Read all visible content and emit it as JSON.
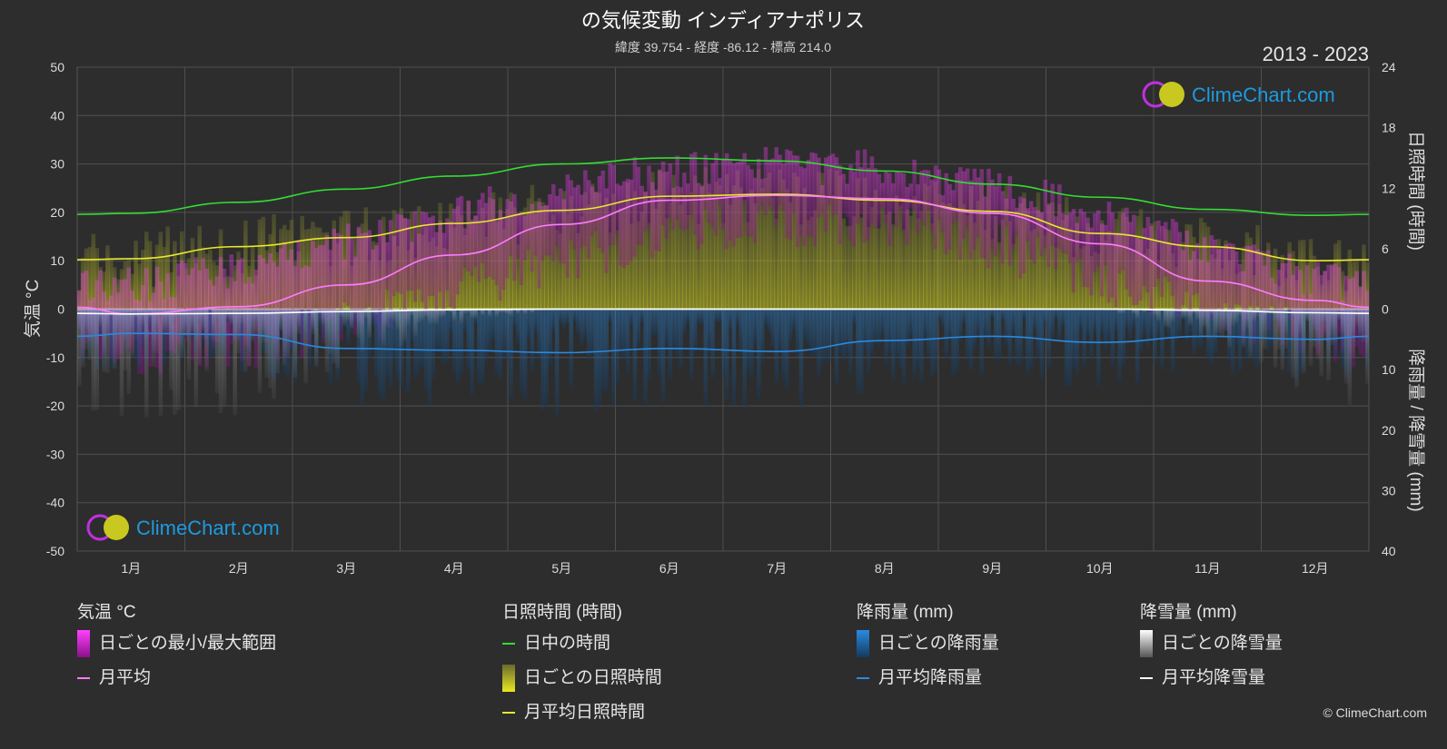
{
  "title": "の気候変動 インディアナポリス",
  "subtitle": "緯度 39.754 - 経度 -86.12 - 標高 214.0",
  "period": "2013 - 2023",
  "logo_text": "ClimeChart.com",
  "copyright": "© ClimeChart.com",
  "colors": {
    "background": "#2d2d2d",
    "temp_range": "#d81fd8",
    "temp_avg": "#ff7bff",
    "daylight": "#33dd33",
    "sunshine": "#c8c820",
    "sunshine_avg": "#e8e830",
    "rain": "#2277cc",
    "rain_avg": "#2a8ae0",
    "snow": "#aaaaaa",
    "snow_avg": "#ffffff",
    "logo": "#1e9ae0"
  },
  "chart_data": {
    "type": "line",
    "months": [
      "1月",
      "2月",
      "3月",
      "4月",
      "5月",
      "6月",
      "7月",
      "8月",
      "9月",
      "10月",
      "11月",
      "12月"
    ],
    "axes": {
      "left": {
        "label": "気温 °C",
        "ylim": [
          -50,
          50
        ],
        "ticks": [
          50,
          40,
          30,
          20,
          10,
          0,
          -10,
          -20,
          -30,
          -40,
          -50
        ]
      },
      "right_top": {
        "label": "日照時間 (時間)",
        "ylim": [
          0,
          24
        ],
        "ticks": [
          24,
          18,
          12,
          6,
          0
        ]
      },
      "right_bottom": {
        "label": "降雨量 / 降雪量 (mm)",
        "ylim": [
          0,
          40
        ],
        "ticks": [
          10,
          20,
          30,
          40
        ]
      }
    },
    "grid": true,
    "series": [
      {
        "name": "日中の時間",
        "unit": "hours",
        "values": [
          9.5,
          10.6,
          11.9,
          13.2,
          14.4,
          15.0,
          14.7,
          13.7,
          12.4,
          11.1,
          9.9,
          9.3
        ]
      },
      {
        "name": "月平均日照時間",
        "unit": "hours",
        "values": [
          5.0,
          6.2,
          7.1,
          8.5,
          9.8,
          11.2,
          11.4,
          10.8,
          9.7,
          7.5,
          6.2,
          4.8
        ]
      },
      {
        "name": "月平均",
        "unit": "°C",
        "values": [
          -1.0,
          0.5,
          5.0,
          11.2,
          17.5,
          22.5,
          23.5,
          22.8,
          19.8,
          13.5,
          5.8,
          1.8
        ]
      },
      {
        "name": "月平均降雨量",
        "unit": "mm",
        "values": [
          4.0,
          4.2,
          6.5,
          6.8,
          7.2,
          6.5,
          7.0,
          5.2,
          4.5,
          5.5,
          4.5,
          5.0
        ]
      },
      {
        "name": "月平均降雪量",
        "unit": "mm",
        "values": [
          0.8,
          0.7,
          0.4,
          0.1,
          0.0,
          0.0,
          0.0,
          0.0,
          0.0,
          0.0,
          0.2,
          0.6
        ]
      }
    ],
    "daily_range_monthly": {
      "name": "日ごとの最小/最大範囲",
      "min": [
        -10,
        -8,
        -3,
        3,
        10,
        16,
        18,
        17,
        13,
        6,
        -1,
        -6
      ],
      "max": [
        5,
        8,
        14,
        20,
        25,
        29,
        30,
        29,
        26,
        20,
        12,
        6
      ]
    }
  },
  "legend": {
    "groups": [
      {
        "title": "気温 °C",
        "items": [
          {
            "label": "日ごとの最小/最大範囲",
            "kind": "box",
            "color": "#d81fd8"
          },
          {
            "label": "月平均",
            "kind": "line",
            "color": "#ff7bff"
          }
        ]
      },
      {
        "title": "日照時間 (時間)",
        "items": [
          {
            "label": "日中の時間",
            "kind": "line",
            "color": "#33dd33"
          },
          {
            "label": "日ごとの日照時間",
            "kind": "box",
            "color": "#c8c820"
          },
          {
            "label": "月平均日照時間",
            "kind": "line",
            "color": "#e8e830"
          }
        ]
      },
      {
        "title": "降雨量 (mm)",
        "items": [
          {
            "label": "日ごとの降雨量",
            "kind": "box",
            "color": "#2277cc"
          },
          {
            "label": "月平均降雨量",
            "kind": "line",
            "color": "#2a8ae0"
          }
        ]
      },
      {
        "title": "降雪量 (mm)",
        "items": [
          {
            "label": "日ごとの降雪量",
            "kind": "box",
            "color": "#dddddd"
          },
          {
            "label": "月平均降雪量",
            "kind": "line",
            "color": "#ffffff"
          }
        ]
      }
    ]
  }
}
